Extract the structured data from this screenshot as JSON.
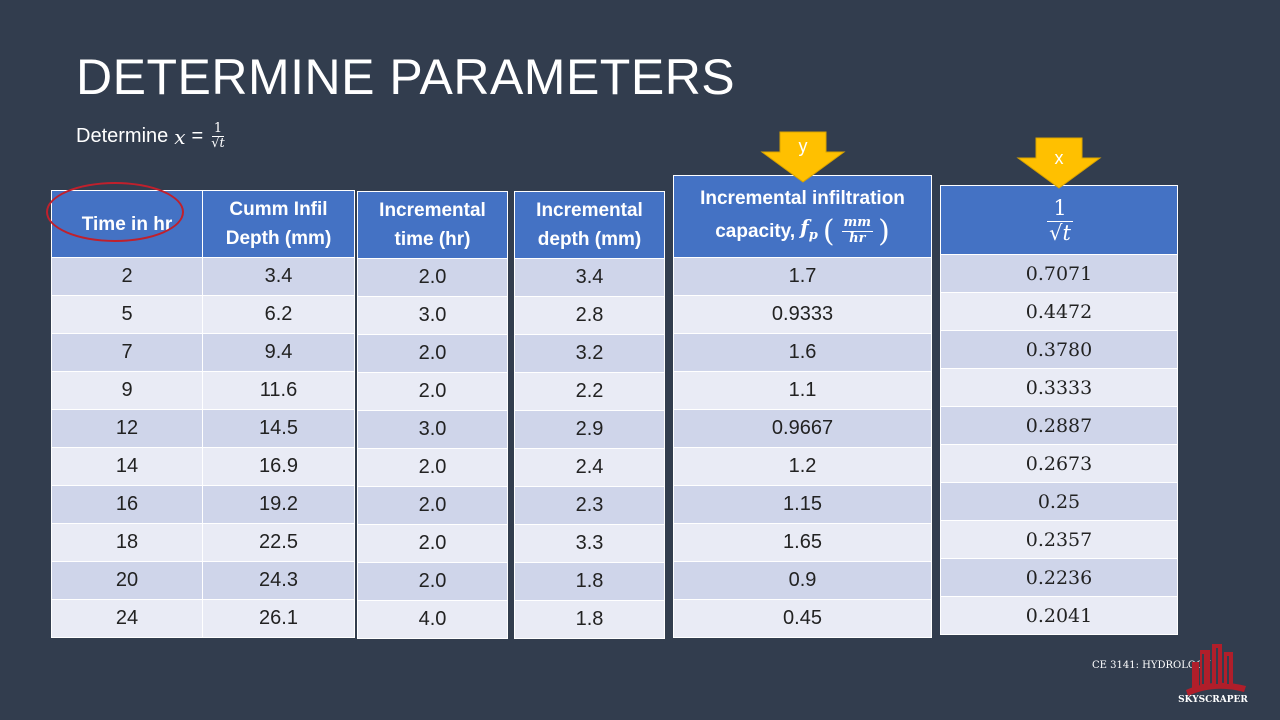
{
  "title": "DETERMINE PARAMETERS",
  "subtitle": {
    "prefix": "Determine",
    "var": "x",
    "eq": "=",
    "num": "1",
    "den": "√t"
  },
  "arrows": {
    "y_label": "y",
    "x_label": "x"
  },
  "table1": {
    "headers": [
      "Time in hr",
      "Cumm Infil Depth (mm)"
    ],
    "rows": [
      [
        "2",
        "3.4"
      ],
      [
        "5",
        "6.2"
      ],
      [
        "7",
        "9.4"
      ],
      [
        "9",
        "11.6"
      ],
      [
        "12",
        "14.5"
      ],
      [
        "14",
        "16.9"
      ],
      [
        "16",
        "19.2"
      ],
      [
        "18",
        "22.5"
      ],
      [
        "20",
        "24.3"
      ],
      [
        "24",
        "26.1"
      ]
    ]
  },
  "table2": {
    "header": "Incremental time (hr)",
    "rows": [
      "2.0",
      "3.0",
      "2.0",
      "2.0",
      "3.0",
      "2.0",
      "2.0",
      "2.0",
      "2.0",
      "4.0"
    ]
  },
  "table3": {
    "header": "Incremental depth (mm)",
    "rows": [
      "3.4",
      "2.8",
      "3.2",
      "2.2",
      "2.9",
      "2.4",
      "2.3",
      "3.3",
      "1.8",
      "1.8"
    ]
  },
  "table4": {
    "header_line1": "Incremental infiltration",
    "header_line2": "capacity,",
    "header_var": "f",
    "header_sub": "p",
    "header_unit_num": "mm",
    "header_unit_den": "hr",
    "rows": [
      "1.7",
      "0.9333",
      "1.6",
      "1.1",
      "0.9667",
      "1.2",
      "1.15",
      "1.65",
      "0.9",
      "0.45"
    ]
  },
  "table5": {
    "header_num": "1",
    "header_den": "√t",
    "rows": [
      "0.7071",
      "0.4472",
      "0.3780",
      "0.3333",
      "0.2887",
      "0.2673",
      "0.25",
      "0.2357",
      "0.2236",
      "0.2041"
    ]
  },
  "footer": {
    "course": "CE 3141: HYDROLOGY",
    "logo_text": "SKYSCRAPER"
  },
  "colors": {
    "background": "#323d4e",
    "header_blue": "#4472c4",
    "row_odd": "#cfd5ea",
    "row_even": "#e9ebf5",
    "arrow_yellow": "#ffc000",
    "ellipse_red": "#c0202c"
  }
}
